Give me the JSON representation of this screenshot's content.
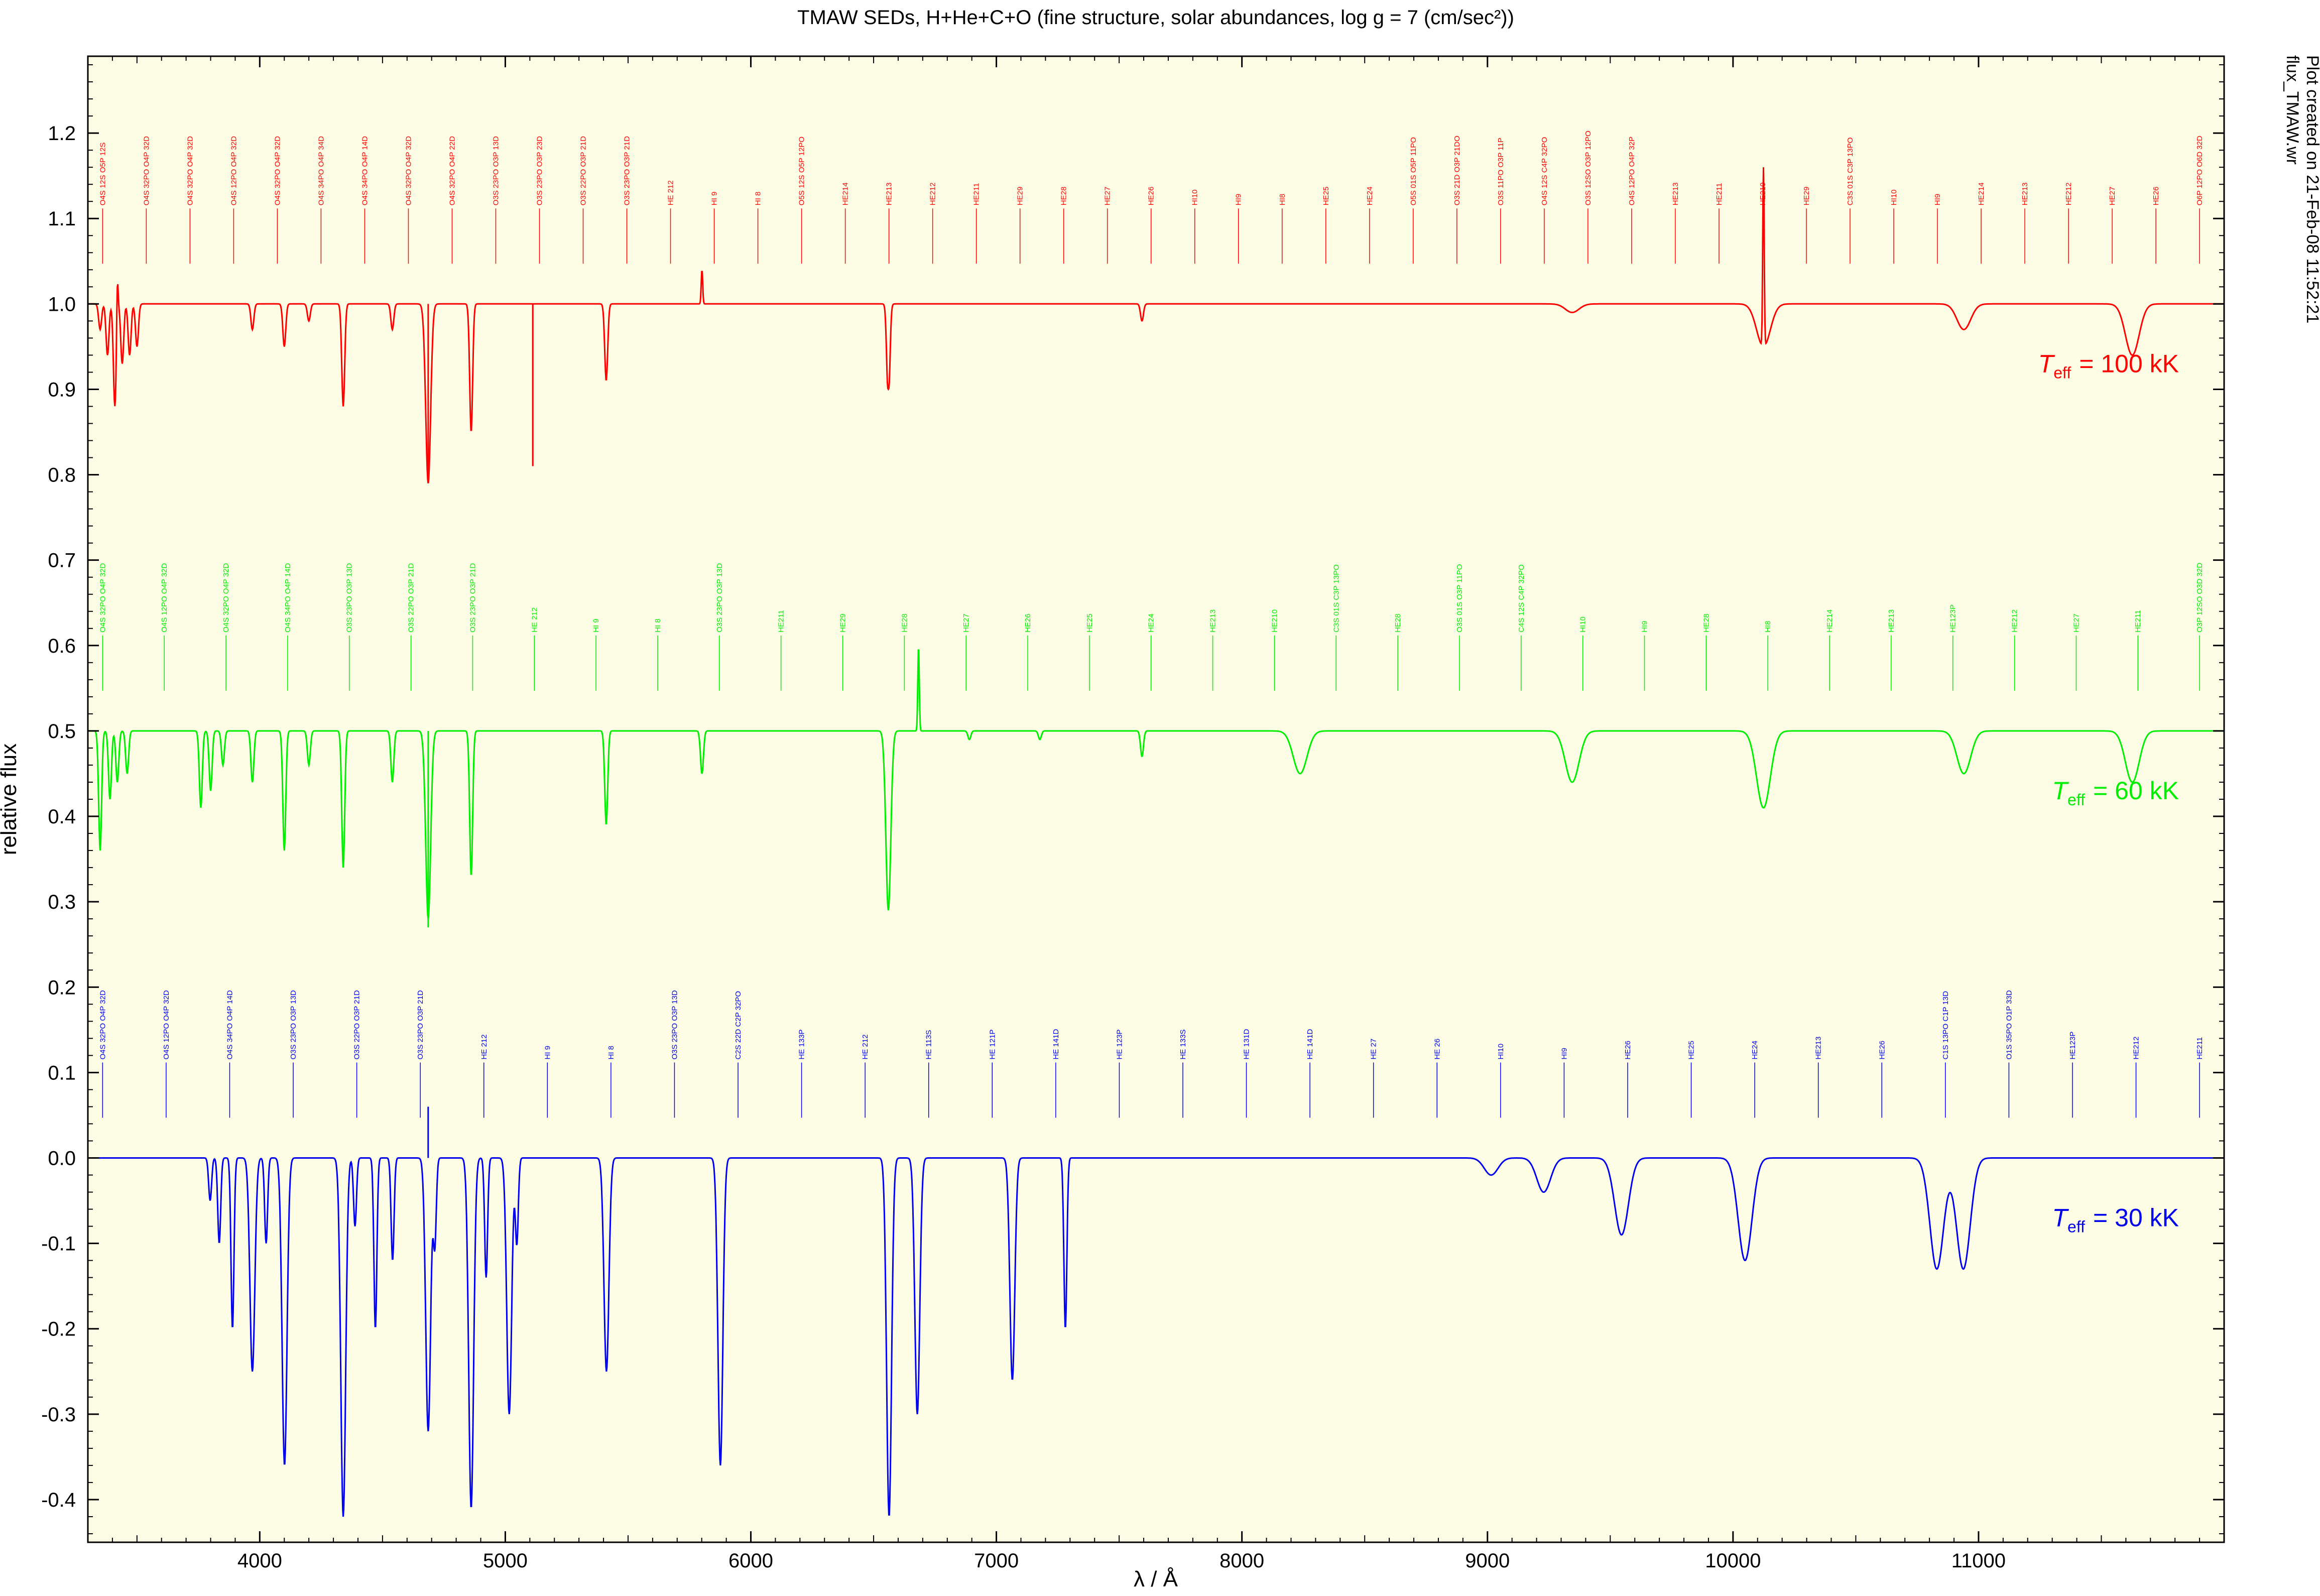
{
  "chart_data": {
    "type": "line",
    "title": "TMAW SEDs, H+He+C+O (fine structure, solar abundances, log g = 7 (cm/sec²))",
    "xlabel": "λ / Å",
    "ylabel": "relative flux",
    "xlim": [
      3300,
      12000
    ],
    "ylim": [
      -0.45,
      1.29
    ],
    "x_ticks": [
      4000,
      5000,
      6000,
      7000,
      8000,
      9000,
      10000,
      11000
    ],
    "y_ticks": [
      -0.4,
      -0.3,
      -0.2,
      -0.1,
      0.0,
      0.1,
      0.2,
      0.3,
      0.4,
      0.5,
      0.6,
      0.7,
      0.8,
      0.9,
      1.0,
      1.1,
      1.2
    ],
    "y_tick_labels": [
      "-0.4",
      "-0.3",
      "-0.2",
      "-0.1",
      "0.0",
      "0.1",
      "0.2",
      "0.3",
      "0.4",
      "0.5",
      "0.6",
      "0.7",
      "0.8",
      "0.9",
      "1.0",
      "1.1",
      "1.2"
    ],
    "grid": false,
    "background": "#fdfde6",
    "side_text": [
      "flux_TMAW.wr",
      "Plot created on 21-Feb-08 11:52:21"
    ],
    "series": [
      {
        "teff_label": "T",
        "teff_sub": "eff",
        "teff_value": "= 100 kK",
        "color": "#ff0000",
        "continuum": 1.0,
        "lines": [
          {
            "x": 3350,
            "depth": 0.03
          },
          {
            "x": 3380,
            "depth": 0.06
          },
          {
            "x": 3410,
            "depth": 0.12
          },
          {
            "x": 3440,
            "depth": 0.07
          },
          {
            "x": 3470,
            "depth": 0.06
          },
          {
            "x": 3500,
            "depth": 0.05
          },
          {
            "x": 3970,
            "depth": 0.03
          },
          {
            "x": 4100,
            "depth": 0.05
          },
          {
            "x": 4200,
            "depth": 0.02
          },
          {
            "x": 4340,
            "depth": 0.12
          },
          {
            "x": 4540,
            "depth": 0.03
          },
          {
            "x": 4686,
            "depth": 0.21
          },
          {
            "x": 4861,
            "depth": 0.15
          },
          {
            "x": 5411,
            "depth": 0.09
          },
          {
            "x": 6560,
            "depth": 0.13
          },
          {
            "x": 7593,
            "depth": 0.02
          },
          {
            "x": 9345,
            "depth": 0.01
          },
          {
            "x": 10124,
            "depth": 0.05
          },
          {
            "x": 10940,
            "depth": 0.03
          },
          {
            "x": 11626,
            "depth": 0.06
          }
        ],
        "emissions": [
          {
            "x": 3420,
            "height": 0.05
          },
          {
            "x": 5801,
            "height": 0.04
          },
          {
            "x": 6560,
            "height": 0.03
          },
          {
            "x": 10124,
            "height": 0.21
          }
        ],
        "spikes": [
          {
            "x": 5112,
            "value": 0.81
          },
          {
            "x": 4686,
            "value": 0.79
          }
        ],
        "label_rows": [
          [
            "O4S 12S O5P 12S",
            "O4S 32PO O4P 32D",
            "O4S 32PO O4P 32D",
            "O4S 12PO O4P 32D",
            "O4S 32PO O4P 32D",
            "O4S 34PO O4P 34D",
            "O4S 34PO O4P 14D",
            "O4S 32PO O4P 32D",
            "O4S 32PO O4P 22D",
            "O3S 23PO O3P 13D",
            "O3S 23PO O3P 23D",
            "O3S 22PO O3P 21D",
            "O3S 23PO O3P 21D",
            "HE 212",
            "HI 9",
            "HI 8",
            "O5S 12S O5P 12PO"
          ],
          [
            "HE214",
            "HE213",
            "HE212",
            "HE211",
            "HE29",
            "HE28",
            "HE27",
            "HE26",
            "HI10",
            "HI9",
            "HI8",
            "HE25",
            "HE24"
          ],
          [
            "O5S 01S O5P 11PO",
            "O3S 21D O3P 21DO",
            "O3S 11PO O3P 11P",
            "O4S 12S C4P 32PO",
            "O3S 12SO O3P 12PO",
            "O4S 12PO O4P 32P",
            "HE213",
            "HE211",
            "HE210",
            "HE29",
            "C3S 01S C3P 13PO",
            "HI10",
            "HI9",
            "HE214",
            "HE213",
            "HE212",
            "HE27",
            "HE26",
            "O6P 12PO O6D 32D"
          ]
        ]
      },
      {
        "teff_label": "T",
        "teff_sub": "eff",
        "teff_value": "=   60 kK",
        "color": "#00ee00",
        "continuum": 0.5,
        "lines": [
          {
            "x": 3350,
            "depth": 0.14
          },
          {
            "x": 3390,
            "depth": 0.08
          },
          {
            "x": 3420,
            "depth": 0.06
          },
          {
            "x": 3460,
            "depth": 0.05
          },
          {
            "x": 3760,
            "depth": 0.09
          },
          {
            "x": 3800,
            "depth": 0.07
          },
          {
            "x": 3850,
            "depth": 0.04
          },
          {
            "x": 3970,
            "depth": 0.06
          },
          {
            "x": 4100,
            "depth": 0.14
          },
          {
            "x": 4200,
            "depth": 0.04
          },
          {
            "x": 4340,
            "depth": 0.16
          },
          {
            "x": 4540,
            "depth": 0.06
          },
          {
            "x": 4686,
            "depth": 0.22
          },
          {
            "x": 4861,
            "depth": 0.17
          },
          {
            "x": 5411,
            "depth": 0.11
          },
          {
            "x": 5801,
            "depth": 0.05
          },
          {
            "x": 6560,
            "depth": 0.21
          },
          {
            "x": 6890,
            "depth": 0.01
          },
          {
            "x": 7177,
            "depth": 0.01
          },
          {
            "x": 7593,
            "depth": 0.03
          },
          {
            "x": 8237,
            "depth": 0.05
          },
          {
            "x": 9345,
            "depth": 0.06
          },
          {
            "x": 10124,
            "depth": 0.09
          },
          {
            "x": 10940,
            "depth": 0.05
          },
          {
            "x": 11626,
            "depth": 0.06
          }
        ],
        "emissions": [
          {
            "x": 6683,
            "height": 0.1
          }
        ],
        "spikes": [
          {
            "x": 4686,
            "value": 0.27
          }
        ],
        "label_rows": [
          [
            "O4S 32PO O4P 32D",
            "O4S 12PO O4P 32D",
            "O4S 32PO O4P 32D",
            "O4S 34PO O4P 14D",
            "O3S 23PO O3P 13D",
            "O3S 22PO O3P 21D",
            "O3S 23PO O3P 21D",
            "HE 212",
            "HI 9",
            "HI 8",
            "O3S 23PO O3P 13D"
          ],
          [
            "HE211",
            "HE29",
            "HE28",
            "HE27",
            "HE26",
            "HE25",
            "HE24",
            "HE213",
            "HE210"
          ],
          [
            "C3S 01S C3P 13PO",
            "HE28",
            "O3S 01S O3P 11PO",
            "C4S 12S C4P 32PO",
            "HI10",
            "HI9",
            "HE28",
            "HI8",
            "HE214",
            "HE213",
            "HE123P",
            "HE212",
            "HE27",
            "HE211",
            "O3P 12SO O3D 32D"
          ]
        ]
      },
      {
        "teff_label": "T",
        "teff_sub": "eff",
        "teff_value": "=   30 kK",
        "color": "#0000ee",
        "continuum": 0.0,
        "lines": [
          {
            "x": 3798,
            "depth": 0.05
          },
          {
            "x": 3835,
            "depth": 0.1
          },
          {
            "x": 3889,
            "depth": 0.2
          },
          {
            "x": 3970,
            "depth": 0.25
          },
          {
            "x": 4026,
            "depth": 0.1
          },
          {
            "x": 4101,
            "depth": 0.36
          },
          {
            "x": 4340,
            "depth": 0.42
          },
          {
            "x": 4388,
            "depth": 0.08
          },
          {
            "x": 4471,
            "depth": 0.2
          },
          {
            "x": 4541,
            "depth": 0.12
          },
          {
            "x": 4686,
            "depth": 0.32
          },
          {
            "x": 4713,
            "depth": 0.1
          },
          {
            "x": 4861,
            "depth": 0.41
          },
          {
            "x": 4922,
            "depth": 0.14
          },
          {
            "x": 5016,
            "depth": 0.3
          },
          {
            "x": 5047,
            "depth": 0.1
          },
          {
            "x": 5412,
            "depth": 0.25
          },
          {
            "x": 5876,
            "depth": 0.36
          },
          {
            "x": 6563,
            "depth": 0.42
          },
          {
            "x": 6678,
            "depth": 0.3
          },
          {
            "x": 7065,
            "depth": 0.26
          },
          {
            "x": 7281,
            "depth": 0.2
          },
          {
            "x": 9015,
            "depth": 0.02
          },
          {
            "x": 9229,
            "depth": 0.04
          },
          {
            "x": 9546,
            "depth": 0.09
          },
          {
            "x": 10049,
            "depth": 0.12
          },
          {
            "x": 10830,
            "depth": 0.13
          },
          {
            "x": 10938,
            "depth": 0.13
          }
        ],
        "emissions": [],
        "spikes": [
          {
            "x": 4686,
            "value": 0.06
          }
        ],
        "label_rows": [
          [
            "O4S 32PO O4P 32D",
            "O4S 12PO O4P 32D",
            "O4S 34PO O4P 14D",
            "O3S 23PO O3P 13D",
            "O3S 22PO O3P 21D",
            "O3S 23PO O3P 21D",
            "HE 212",
            "HI 9",
            "HI 8",
            "O3S 23PO O3P 13D",
            "C2S 22D C2P 32PO"
          ],
          [
            "HE 133P",
            "HE 212",
            "HE 113S",
            "HE 121P",
            "HE 141D",
            "HE 123P",
            "HE 133S",
            "HE 131D",
            "HE 141D",
            "HE 27",
            "HE 26"
          ],
          [
            "HI10",
            "HI9",
            "HE26",
            "HE25",
            "HE24",
            "HE213",
            "HE26",
            "C1S 13PO C1P 13D",
            "O1S 35PO O1P 33D",
            "HE123P",
            "HE212",
            "HE211"
          ]
        ]
      }
    ]
  }
}
